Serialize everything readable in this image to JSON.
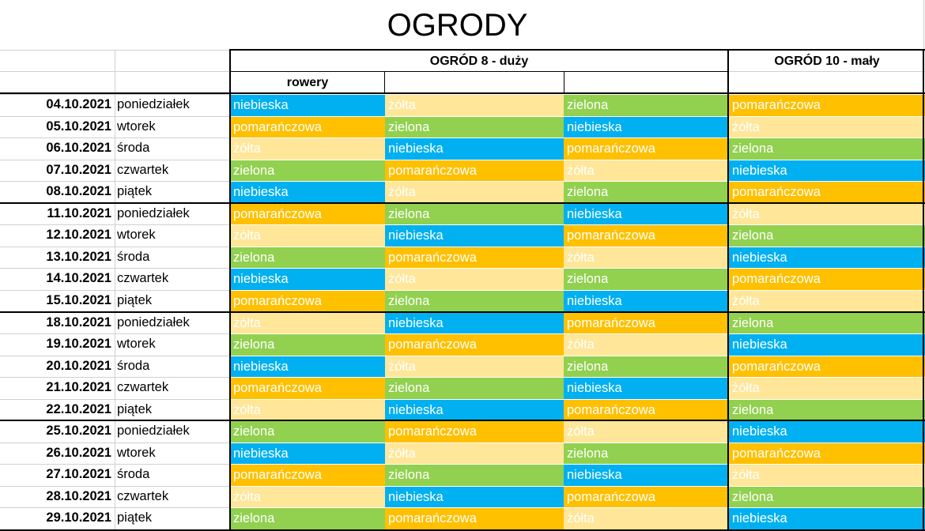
{
  "title": "OGRODY",
  "headers": {
    "ogrod8": "OGRÓD 8  - duży",
    "ogrod10": "OGRÓD 10 - mały",
    "rowery": "rowery"
  },
  "colors": {
    "niebieska": "#00b0f0",
    "żółta": "#ffe699",
    "zielona": "#92d050",
    "pomarańczowa": "#ffc000"
  },
  "rows": [
    {
      "date": "04.10.2021",
      "day": "poniedziałek",
      "cells": [
        "niebieska",
        "żółta",
        "zielona",
        "pomarańczowa"
      ]
    },
    {
      "date": "05.10.2021",
      "day": "wtorek",
      "cells": [
        "pomarańczowa",
        "zielona",
        "niebieska",
        "żółta"
      ]
    },
    {
      "date": "06.10.2021",
      "day": "środa",
      "cells": [
        "żółta",
        "niebieska",
        "pomarańczowa",
        "zielona"
      ]
    },
    {
      "date": "07.10.2021",
      "day": "czwartek",
      "cells": [
        "zielona",
        "pomarańczowa",
        "żółta",
        "niebieska"
      ]
    },
    {
      "date": "08.10.2021",
      "day": "piątek",
      "cells": [
        "niebieska",
        "żółta",
        "zielona",
        "pomarańczowa"
      ]
    },
    {
      "date": "11.10.2021",
      "day": "poniedziałek",
      "cells": [
        "pomarańczowa",
        "zielona",
        "niebieska",
        "żółta"
      ]
    },
    {
      "date": "12.10.2021",
      "day": "wtorek",
      "cells": [
        "żółta",
        "niebieska",
        "pomarańczowa",
        "zielona"
      ]
    },
    {
      "date": "13.10.2021",
      "day": "środa",
      "cells": [
        "zielona",
        "pomarańczowa",
        "żółta",
        "niebieska"
      ]
    },
    {
      "date": "14.10.2021",
      "day": "czwartek",
      "cells": [
        "niebieska",
        "żółta",
        "zielona",
        "pomarańczowa"
      ]
    },
    {
      "date": "15.10.2021",
      "day": "piątek",
      "cells": [
        "pomarańczowa",
        "zielona",
        "niebieska",
        "żółta"
      ]
    },
    {
      "date": "18.10.2021",
      "day": "poniedziałek",
      "cells": [
        "żółta",
        "niebieska",
        "pomarańczowa",
        "zielona"
      ]
    },
    {
      "date": "19.10.2021",
      "day": "wtorek",
      "cells": [
        "zielona",
        "pomarańczowa",
        "żółta",
        "niebieska"
      ]
    },
    {
      "date": "20.10.2021",
      "day": "środa",
      "cells": [
        "niebieska",
        "żółta",
        "zielona",
        "pomarańczowa"
      ]
    },
    {
      "date": "21.10.2021",
      "day": "czwartek",
      "cells": [
        "pomarańczowa",
        "zielona",
        "niebieska",
        "żółta"
      ]
    },
    {
      "date": "22.10.2021",
      "day": "piątek",
      "cells": [
        "żółta",
        "niebieska",
        "pomarańczowa",
        "zielona"
      ]
    },
    {
      "date": "25.10.2021",
      "day": "poniedziałek",
      "cells": [
        "zielona",
        "pomarańczowa",
        "żółta",
        "niebieska"
      ]
    },
    {
      "date": "26.10.2021",
      "day": "wtorek",
      "cells": [
        "niebieska",
        "żółta",
        "zielona",
        "pomarańczowa"
      ]
    },
    {
      "date": "27.10.2021",
      "day": "środa",
      "cells": [
        "pomarańczowa",
        "zielona",
        "niebieska",
        "żółta"
      ]
    },
    {
      "date": "28.10.2021",
      "day": "czwartek",
      "cells": [
        "żółta",
        "niebieska",
        "pomarańczowa",
        "zielona"
      ]
    },
    {
      "date": "29.10.2021",
      "day": "piątek",
      "cells": [
        "zielona",
        "pomarańczowa",
        "żółta",
        "niebieska"
      ]
    }
  ]
}
